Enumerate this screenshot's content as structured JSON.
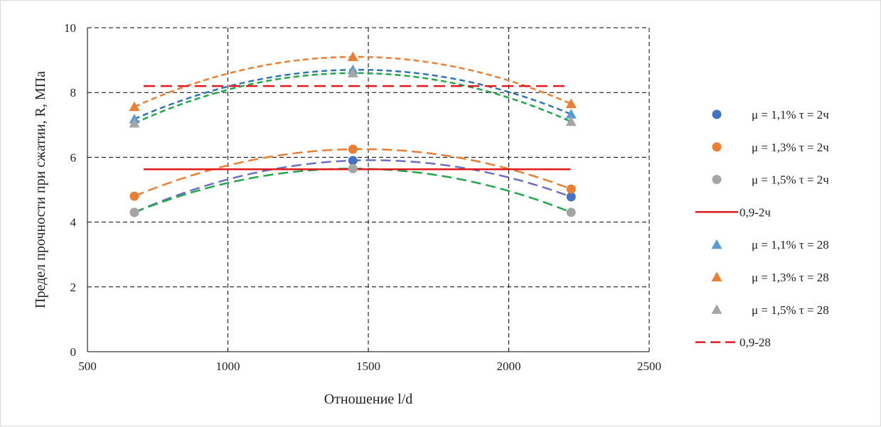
{
  "chart_data": {
    "type": "scatter",
    "xlabel": "Отношение l/d",
    "ylabel": "Предел прочности при сжатии, R, МПа",
    "xlim": [
      500,
      2500
    ],
    "ylim": [
      0,
      10
    ],
    "x_ticks": [
      "500",
      "1000",
      "1500",
      "2000",
      "2500"
    ],
    "y_ticks": [
      "0",
      "2",
      "4",
      "6",
      "8",
      "10"
    ],
    "grid": true,
    "legend_position": "right",
    "series": [
      {
        "name": "μ = 1,1% τ = 2ч",
        "marker": "circle",
        "color": "#4472c4",
        "x": [
          667,
          1445,
          2222
        ],
        "y": [
          4.3,
          5.9,
          4.78
        ],
        "trend_color": "#6b6fc6",
        "trend_style": "long-dash"
      },
      {
        "name": "μ = 1,3% τ = 2ч",
        "marker": "circle",
        "color": "#ed7d31",
        "x": [
          667,
          1445,
          2222
        ],
        "y": [
          4.8,
          6.25,
          5.02
        ],
        "trend_color": "#ed7d31",
        "trend_style": "long-dash"
      },
      {
        "name": "μ = 1,5% τ = 2ч",
        "marker": "circle",
        "color": "#a5a5a5",
        "x": [
          667,
          1445,
          2222
        ],
        "y": [
          4.3,
          5.65,
          4.3
        ],
        "trend_color": "#1fa84a",
        "trend_style": "long-dash"
      },
      {
        "name": "0,9-2ч",
        "marker": "line",
        "color": "#e31a1c",
        "x": [
          700,
          2220
        ],
        "y": [
          5.63,
          5.63
        ],
        "line_style": "solid"
      },
      {
        "name": "μ = 1,1% τ = 28",
        "marker": "triangle",
        "color": "#5b9bd5",
        "x": [
          667,
          1445,
          2222
        ],
        "y": [
          7.18,
          8.7,
          7.33
        ],
        "trend_color": "#2e75b6",
        "trend_style": "short-dash"
      },
      {
        "name": "μ = 1,3% τ = 28",
        "marker": "triangle",
        "color": "#ed7d31",
        "x": [
          667,
          1445,
          2222
        ],
        "y": [
          7.56,
          9.1,
          7.65
        ],
        "trend_color": "#ed7d31",
        "trend_style": "short-dash"
      },
      {
        "name": "μ = 1,5% τ = 28",
        "marker": "triangle",
        "color": "#a5a5a5",
        "x": [
          667,
          1445,
          2222
        ],
        "y": [
          7.05,
          8.6,
          7.1
        ],
        "trend_color": "#1fa84a",
        "trend_style": "short-dash"
      },
      {
        "name": "0,9-28",
        "marker": "line",
        "color": "#e31a1c",
        "x": [
          700,
          2200
        ],
        "y": [
          8.2,
          8.2
        ],
        "line_style": "dashed"
      }
    ]
  }
}
